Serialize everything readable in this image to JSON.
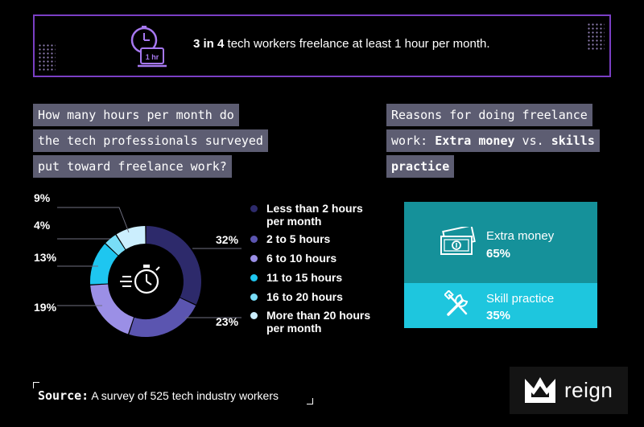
{
  "banner": {
    "highlight": "3 in 4",
    "text": " tech workers freelance at least 1 hour per month.",
    "icon": "clock-laptop-icon",
    "icon_label": "1 hr"
  },
  "hours_question": {
    "lines": [
      "How many hours per month do",
      "the tech professionals surveyed",
      "put toward freelance work?"
    ]
  },
  "reasons_question": {
    "line1": "Reasons for doing freelance",
    "line2_prefix": "work: ",
    "line2_bold": "Extra money",
    "line2_mid": " vs. ",
    "line2_bold2": "skills",
    "line3_bold": "practice"
  },
  "chart_data": [
    {
      "type": "pie",
      "variant": "donut",
      "categories": [
        "Less than 2 hours per month",
        "2 to 5 hours",
        "6 to 10 hours",
        "11 to 15 hours",
        "16 to 20 hours",
        "More than 20 hours per month"
      ],
      "values": [
        32,
        23,
        19,
        13,
        4,
        9
      ],
      "labels": [
        "32%",
        "23%",
        "19%",
        "13%",
        "4%",
        "9%"
      ],
      "colors": [
        "#2d2a6b",
        "#5b55b0",
        "#9b8fe6",
        "#1ec6f0",
        "#79ddf7",
        "#cbeefd"
      ],
      "center_icon": "stopwatch-icon",
      "legend_placement": "right"
    },
    {
      "type": "table",
      "rows": [
        {
          "label": "Extra money",
          "value": "65%",
          "icon": "money-bill-icon",
          "color": "#15919a"
        },
        {
          "label": "Skill practice",
          "value": "35%",
          "icon": "tools-icon",
          "color": "#1ec6de"
        }
      ]
    }
  ],
  "source": {
    "label": "Source:",
    "text": " A survey of 525 tech industry workers"
  },
  "logo": {
    "text": "reign",
    "icon": "crown-icon"
  }
}
